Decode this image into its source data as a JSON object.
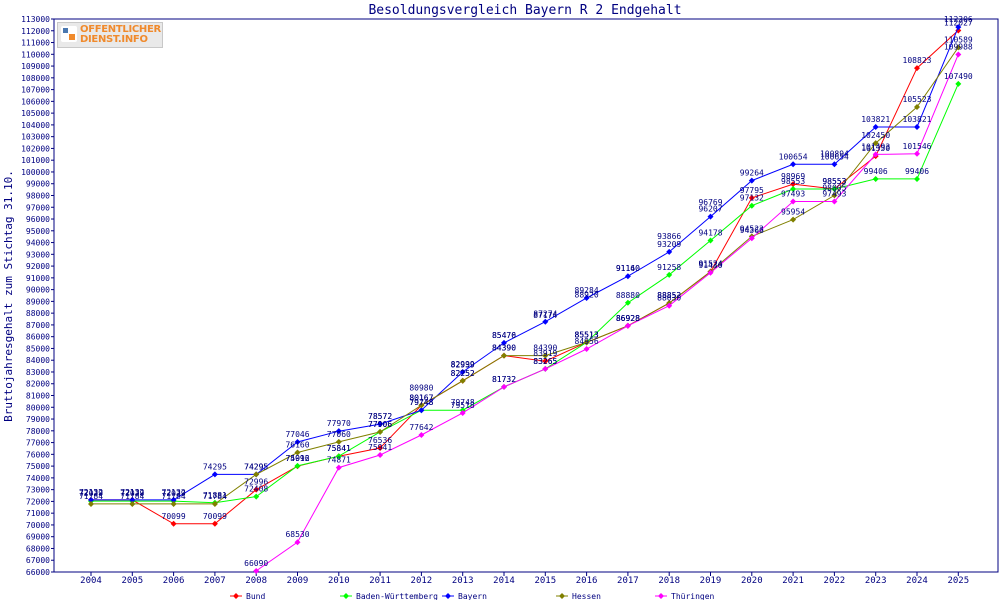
{
  "logo": {
    "line1": "OFFENTLICHER",
    "line2": "DIENST.INFO"
  },
  "chart_data": {
    "type": "line",
    "title": "Besoldungsvergleich Bayern R 2 Endgehalt",
    "xlabel": "",
    "ylabel": "Bruttojahresgehalt zum Stichtag 31.10.",
    "ylim": [
      66000,
      113000
    ],
    "y_tick_step": 1000,
    "grid": false,
    "legend_position": "bottom",
    "x": [
      "2004",
      "2005",
      "2006",
      "2007",
      "2008",
      "2009",
      "2010",
      "2011",
      "2012",
      "2013",
      "2014",
      "2015",
      "2016",
      "2017",
      "2018",
      "2019",
      "2020",
      "2021",
      "2022",
      "2023",
      "2024",
      "2025"
    ],
    "series": [
      {
        "name": "Bund",
        "color": "#ff0000",
        "values": [
          72132,
          72132,
          70099,
          70099,
          72996,
          74992,
          75841,
          76536,
          80167,
          82252,
          84390,
          83919,
          85513,
          86928,
          88852,
          91524,
          97795,
          98969,
          98553,
          101350,
          108823,
          112027
        ]
      },
      {
        "name": "Baden-Württemberg",
        "color": "#00ff00",
        "values": [
          72029,
          72029,
          72029,
          71881,
          72408,
          75016,
          75841,
          77906,
          79748,
          79748,
          81732,
          83265,
          85513,
          88880,
          91258,
          94178,
          97132,
          98553,
          98553,
          99406,
          99406,
          107490
        ]
      },
      {
        "name": "Bayern",
        "color": "#0000ff",
        "values": [
          72132,
          72132,
          72132,
          74295,
          74295,
          77046,
          77970,
          78572,
          79748,
          82999,
          85470,
          87274,
          89284,
          91140,
          93209,
          96207,
          99264,
          100654,
          100654,
          103821,
          103821,
          112306
        ]
      },
      {
        "name": "Hessen",
        "color": "#808000",
        "values": [
          71784,
          71784,
          71784,
          71784,
          74295,
          76160,
          77060,
          77906,
          80167,
          82252,
          84390,
          84390,
          85513,
          86928,
          88852,
          91524,
          94523,
          95954,
          98005,
          102450,
          105523,
          110589
        ]
      },
      {
        "name": "Thüringen",
        "color": "#ff00ff",
        "values": [
          null,
          null,
          null,
          null,
          66090,
          68530,
          74871,
          75941,
          77642,
          79518,
          81732,
          83265,
          84956,
          86928,
          88630,
          91430,
          94366,
          97493,
          97493,
          101493,
          101546,
          109988
        ]
      }
    ],
    "annotations": [
      {
        "x": "2018",
        "y": 93866,
        "text": "93866"
      },
      {
        "x": "2019",
        "y": 96769,
        "text": "96769"
      },
      {
        "x": "2022",
        "y": 100894,
        "text": "100894"
      },
      {
        "x": "2013",
        "y": 82939,
        "text": "82939"
      },
      {
        "x": "2012",
        "y": 80980,
        "text": "80980"
      },
      {
        "x": "2011",
        "y": 78572,
        "text": "78572"
      },
      {
        "x": "2016",
        "y": 88920,
        "text": "88920"
      },
      {
        "x": "2015",
        "y": 87174,
        "text": "87174"
      },
      {
        "x": "2017",
        "y": 91160,
        "text": "91160"
      },
      {
        "x": "2014",
        "y": 85476,
        "text": "85476"
      }
    ]
  }
}
